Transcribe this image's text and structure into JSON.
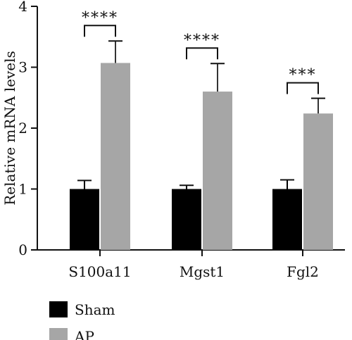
{
  "chart_data": {
    "type": "bar",
    "categories": [
      "S100a11",
      "Mgst1",
      "Fgl2"
    ],
    "series": [
      {
        "name": "Sham",
        "values": [
          1.0,
          1.0,
          1.0
        ],
        "errors": [
          0.14,
          0.06,
          0.15
        ],
        "color": "#000000"
      },
      {
        "name": "AP",
        "values": [
          3.07,
          2.6,
          2.24
        ],
        "errors": [
          0.36,
          0.46,
          0.25
        ],
        "color": "#a6a6a6"
      }
    ],
    "significance": [
      "****",
      "****",
      "***"
    ],
    "ylabel": "Relative mRNA levels",
    "xlabel": "",
    "ylim": [
      0,
      4
    ],
    "yticks": [
      0,
      1,
      2,
      3,
      4
    ],
    "grid": false,
    "legend_position": "bottom-left"
  }
}
